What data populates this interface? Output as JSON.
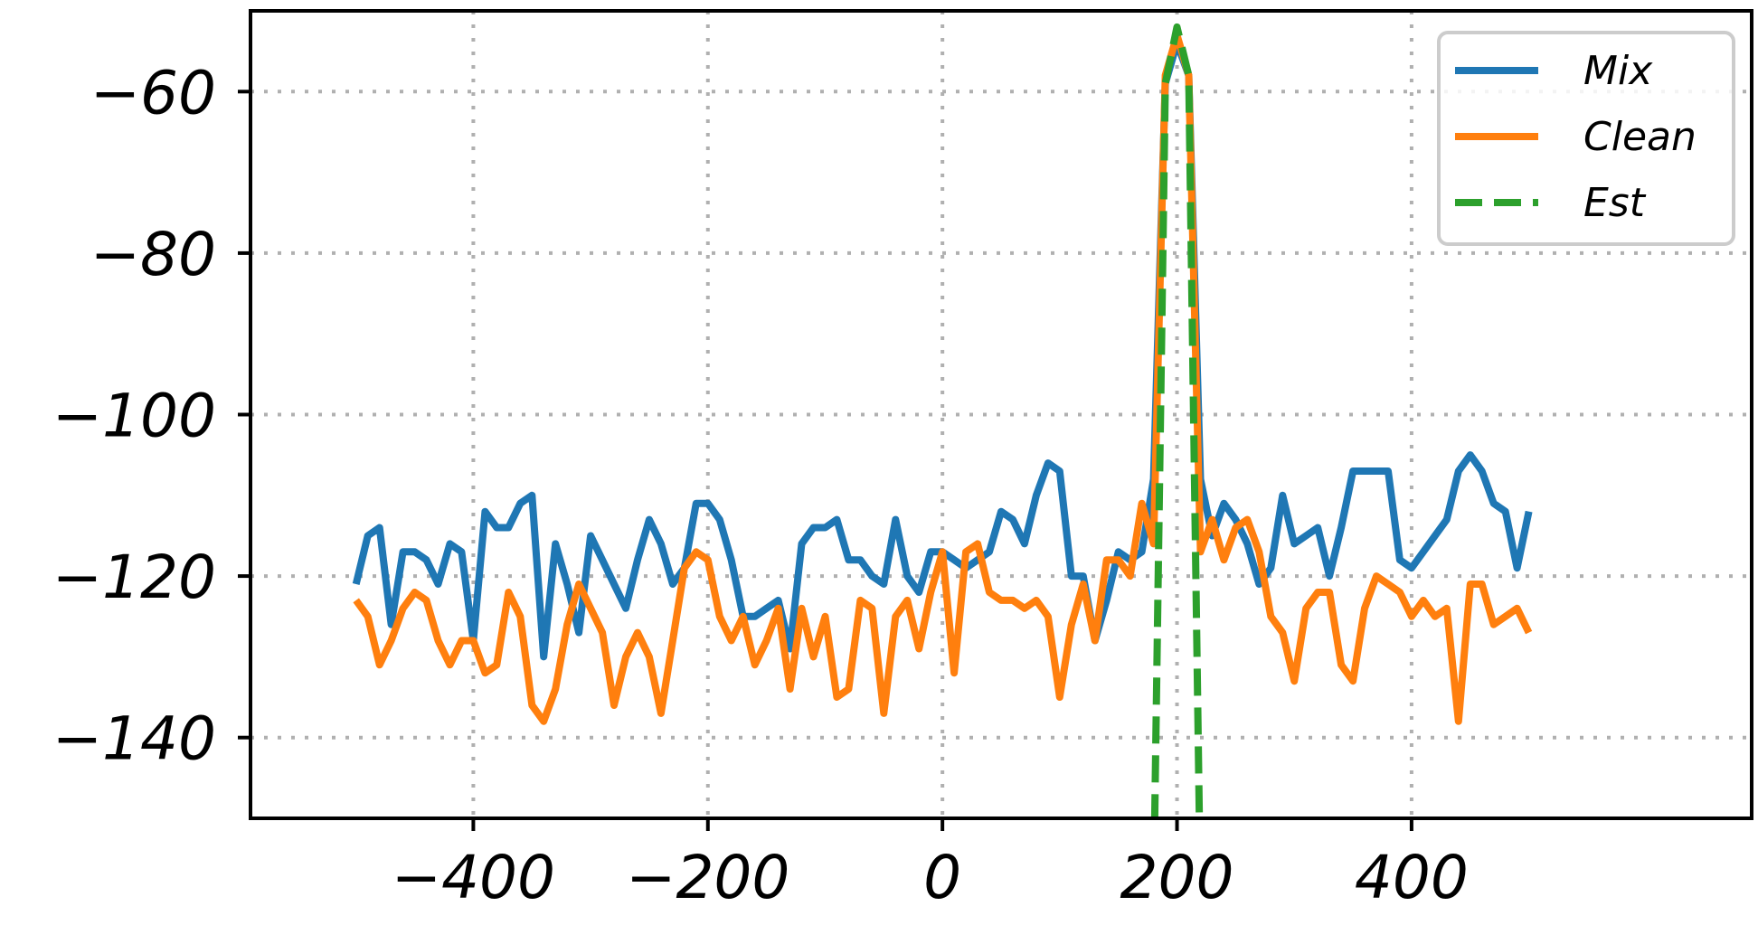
{
  "chart_data": {
    "type": "line",
    "title": "",
    "xlabel": "",
    "ylabel": "",
    "xlim": [
      -590,
      690
    ],
    "ylim": [
      -150,
      -50
    ],
    "xticks": [
      -400,
      -200,
      0,
      200,
      400
    ],
    "yticks": [
      -140,
      -120,
      -100,
      -80,
      -60
    ],
    "xtick_labels": [
      "−400",
      "−200",
      "0",
      "200",
      "400"
    ],
    "ytick_labels": [
      "−140",
      "−120",
      "−100",
      "−80",
      "−60"
    ],
    "grid": true,
    "legend_position": "top-right",
    "series": [
      {
        "name": "Mix",
        "color": "#1f77b4",
        "style": "solid",
        "x": [
          -500,
          -490,
          -480,
          -470,
          -460,
          -450,
          -440,
          -430,
          -420,
          -410,
          -400,
          -390,
          -380,
          -370,
          -360,
          -350,
          -340,
          -330,
          -320,
          -310,
          -300,
          -290,
          -280,
          -270,
          -260,
          -250,
          -240,
          -230,
          -220,
          -210,
          -200,
          -190,
          -180,
          -170,
          -160,
          -150,
          -140,
          -130,
          -120,
          -110,
          -100,
          -90,
          -80,
          -70,
          -60,
          -50,
          -40,
          -30,
          -20,
          -10,
          0,
          10,
          20,
          30,
          40,
          50,
          60,
          70,
          80,
          90,
          100,
          110,
          120,
          130,
          140,
          150,
          160,
          170,
          180,
          190,
          200,
          210,
          220,
          230,
          240,
          250,
          260,
          270,
          280,
          290,
          300,
          310,
          320,
          330,
          340,
          350,
          360,
          370,
          380,
          390,
          400,
          410,
          420,
          430,
          440,
          450,
          460,
          470,
          480,
          490,
          500
        ],
        "values": [
          -121,
          -115,
          -114,
          -126,
          -117,
          -117,
          -118,
          -121,
          -116,
          -117,
          -128,
          -112,
          -114,
          -114,
          -111,
          -110,
          -130,
          -116,
          -121,
          -127,
          -115,
          -118,
          -121,
          -124,
          -118,
          -113,
          -116,
          -121,
          -119,
          -111,
          -111,
          -113,
          -118,
          -125,
          -125,
          -124,
          -123,
          -129,
          -116,
          -114,
          -114,
          -113,
          -118,
          -118,
          -120,
          -121,
          -113,
          -120,
          -122,
          -117,
          -117,
          -118,
          -119,
          -118,
          -117,
          -112,
          -113,
          -116,
          -110,
          -106,
          -107,
          -120,
          -120,
          -128,
          -123,
          -117,
          -118,
          -117,
          -108,
          -59,
          -54,
          -58,
          -108,
          -115,
          -111,
          -113,
          -116,
          -121,
          -119,
          -110,
          -116,
          -115,
          -114,
          -120,
          -114,
          -107,
          -107,
          -107,
          -107,
          -118,
          -119,
          -117,
          -115,
          -113,
          -107,
          -105,
          -107,
          -111,
          -112,
          -119,
          -112
        ]
      },
      {
        "name": "Clean",
        "color": "#ff7f0e",
        "style": "solid",
        "x": [
          -500,
          -490,
          -480,
          -470,
          -460,
          -450,
          -440,
          -430,
          -420,
          -410,
          -400,
          -390,
          -380,
          -370,
          -360,
          -350,
          -340,
          -330,
          -320,
          -310,
          -300,
          -290,
          -280,
          -270,
          -260,
          -250,
          -240,
          -230,
          -220,
          -210,
          -200,
          -190,
          -180,
          -170,
          -160,
          -150,
          -140,
          -130,
          -120,
          -110,
          -100,
          -90,
          -80,
          -70,
          -60,
          -50,
          -40,
          -30,
          -20,
          -10,
          0,
          10,
          20,
          30,
          40,
          50,
          60,
          70,
          80,
          90,
          100,
          110,
          120,
          130,
          140,
          150,
          160,
          170,
          180,
          190,
          200,
          210,
          220,
          230,
          240,
          250,
          260,
          270,
          280,
          290,
          300,
          310,
          320,
          330,
          340,
          350,
          360,
          370,
          380,
          390,
          400,
          410,
          420,
          430,
          440,
          450,
          460,
          470,
          480,
          490,
          500
        ],
        "values": [
          -123,
          -125,
          -131,
          -128,
          -124,
          -122,
          -123,
          -128,
          -131,
          -128,
          -128,
          -132,
          -131,
          -122,
          -125,
          -136,
          -138,
          -134,
          -126,
          -121,
          -124,
          -127,
          -136,
          -130,
          -127,
          -130,
          -137,
          -128,
          -119,
          -117,
          -118,
          -125,
          -128,
          -125,
          -131,
          -128,
          -124,
          -134,
          -124,
          -130,
          -125,
          -135,
          -134,
          -123,
          -124,
          -137,
          -125,
          -123,
          -129,
          -122,
          -117,
          -132,
          -117,
          -116,
          -122,
          -123,
          -123,
          -124,
          -123,
          -125,
          -135,
          -126,
          -121,
          -128,
          -118,
          -118,
          -120,
          -111,
          -116,
          -58,
          -53,
          -58,
          -117,
          -113,
          -118,
          -114,
          -113,
          -117,
          -125,
          -127,
          -133,
          -124,
          -122,
          -122,
          -131,
          -133,
          -124,
          -120,
          -121,
          -122,
          -125,
          -123,
          -125,
          -124,
          -138,
          -121,
          -121,
          -126,
          -125,
          -124,
          -127
        ]
      },
      {
        "name": "Est",
        "color": "#2ca02c",
        "style": "dashed",
        "x": [
          180,
          190,
          200,
          210,
          220
        ],
        "values": [
          -160,
          -59,
          -52,
          -58,
          -160
        ]
      }
    ]
  }
}
